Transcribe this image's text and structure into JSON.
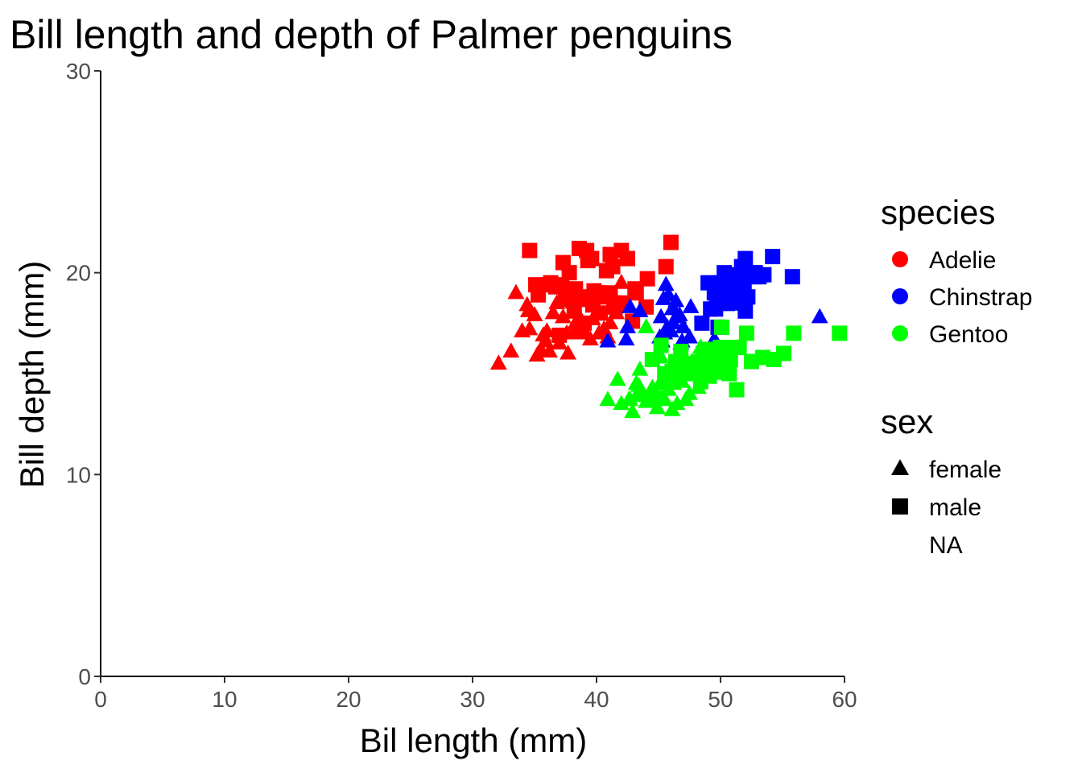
{
  "chart_data": {
    "type": "scatter",
    "title": "Bill length and depth of Palmer penguins",
    "xlabel": "Bil length (mm)",
    "ylabel": "Bill depth (mm)",
    "xlim": [
      0,
      60
    ],
    "ylim": [
      0,
      30
    ],
    "xticks": [
      0,
      10,
      20,
      30,
      40,
      50,
      60
    ],
    "yticks": [
      0,
      10,
      20,
      30
    ],
    "grid": false,
    "legend_position": "right",
    "species_legend": {
      "title": "species",
      "items": [
        {
          "label": "Adelie",
          "color": "#ff0000"
        },
        {
          "label": "Chinstrap",
          "color": "#0000ff"
        },
        {
          "label": "Gentoo",
          "color": "#00ff00"
        }
      ]
    },
    "sex_legend": {
      "title": "sex",
      "items": [
        {
          "label": "female",
          "shape": "triangle"
        },
        {
          "label": "male",
          "shape": "square"
        },
        {
          "label": "NA",
          "shape": "none"
        }
      ]
    },
    "series": [
      {
        "species": "Adelie",
        "sex": "male",
        "color": "#ff0000",
        "shape": "square",
        "points": [
          [
            34.6,
            21.1
          ],
          [
            37.8,
            20.0
          ],
          [
            38.6,
            21.2
          ],
          [
            39.2,
            21.1
          ],
          [
            41.1,
            20.9
          ],
          [
            42.0,
            21.1
          ],
          [
            46.0,
            21.5
          ],
          [
            45.6,
            20.3
          ],
          [
            40.8,
            20.1
          ],
          [
            36.3,
            19.5
          ],
          [
            37.2,
            19.4
          ],
          [
            38.2,
            18.1
          ],
          [
            39.8,
            19.1
          ],
          [
            40.3,
            18.0
          ],
          [
            41.3,
            20.3
          ],
          [
            42.5,
            20.7
          ],
          [
            41.1,
            19.0
          ],
          [
            43.2,
            19.0
          ],
          [
            44.1,
            19.7
          ],
          [
            40.6,
            18.8
          ],
          [
            39.0,
            17.5
          ],
          [
            37.7,
            18.7
          ],
          [
            38.8,
            17.2
          ],
          [
            35.3,
            18.9
          ],
          [
            36.0,
            19.4
          ],
          [
            37.3,
            20.5
          ],
          [
            38.1,
            18.6
          ],
          [
            39.7,
            18.4
          ],
          [
            40.2,
            19.0
          ],
          [
            40.5,
            18.9
          ],
          [
            41.5,
            18.3
          ],
          [
            42.2,
            18.5
          ],
          [
            44.0,
            18.3
          ],
          [
            39.6,
            20.7
          ],
          [
            36.7,
            19.3
          ],
          [
            38.3,
            19.2
          ],
          [
            37.6,
            19.1
          ],
          [
            41.4,
            18.5
          ],
          [
            39.3,
            20.6
          ],
          [
            43.1,
            19.2
          ],
          [
            37.5,
            18.9
          ],
          [
            40.9,
            18.9
          ],
          [
            38.9,
            18.8
          ],
          [
            35.1,
            19.4
          ],
          [
            42.9,
            17.6
          ],
          [
            37.0,
            16.9
          ]
        ]
      },
      {
        "species": "Adelie",
        "sex": "female",
        "color": "#ff0000",
        "shape": "triangle",
        "points": [
          [
            32.1,
            15.5
          ],
          [
            33.1,
            16.1
          ],
          [
            33.5,
            19.0
          ],
          [
            34.0,
            17.1
          ],
          [
            34.4,
            18.4
          ],
          [
            34.5,
            18.1
          ],
          [
            35.0,
            17.9
          ],
          [
            35.5,
            16.2
          ],
          [
            35.7,
            16.9
          ],
          [
            35.9,
            16.6
          ],
          [
            36.2,
            16.1
          ],
          [
            36.5,
            18.0
          ],
          [
            36.8,
            18.5
          ],
          [
            37.0,
            16.5
          ],
          [
            37.3,
            17.8
          ],
          [
            37.7,
            16.0
          ],
          [
            37.9,
            18.6
          ],
          [
            38.1,
            17.0
          ],
          [
            38.3,
            17.5
          ],
          [
            38.6,
            17.0
          ],
          [
            38.8,
            17.6
          ],
          [
            39.0,
            17.1
          ],
          [
            39.2,
            18.6
          ],
          [
            39.5,
            16.7
          ],
          [
            39.7,
            17.7
          ],
          [
            40.2,
            17.0
          ],
          [
            40.6,
            17.2
          ],
          [
            40.9,
            16.8
          ],
          [
            41.1,
            17.5
          ],
          [
            41.6,
            18.0
          ],
          [
            42.0,
            19.5
          ],
          [
            34.6,
            17.2
          ],
          [
            36.0,
            17.1
          ],
          [
            35.2,
            15.9
          ],
          [
            37.6,
            17.0
          ]
        ]
      },
      {
        "species": "Chinstrap",
        "sex": "male",
        "color": "#0000ff",
        "shape": "square",
        "points": [
          [
            50.0,
            19.5
          ],
          [
            50.5,
            19.6
          ],
          [
            51.3,
            19.2
          ],
          [
            52.0,
            18.1
          ],
          [
            52.7,
            19.8
          ],
          [
            53.5,
            19.9
          ],
          [
            54.2,
            20.8
          ],
          [
            55.8,
            19.8
          ],
          [
            50.9,
            19.1
          ],
          [
            49.0,
            19.5
          ],
          [
            51.5,
            18.7
          ],
          [
            49.6,
            18.2
          ],
          [
            50.8,
            18.5
          ],
          [
            52.0,
            20.7
          ],
          [
            51.4,
            19.0
          ],
          [
            50.7,
            19.7
          ],
          [
            49.5,
            19.0
          ],
          [
            52.8,
            20.0
          ],
          [
            51.9,
            19.5
          ],
          [
            49.8,
            17.3
          ],
          [
            49.7,
            18.6
          ],
          [
            48.5,
            17.5
          ],
          [
            50.6,
            19.4
          ],
          [
            51.7,
            20.3
          ],
          [
            51.0,
            18.8
          ],
          [
            49.2,
            18.2
          ],
          [
            50.2,
            18.7
          ],
          [
            52.2,
            18.8
          ],
          [
            51.3,
            19.9
          ],
          [
            52.5,
            20.0
          ],
          [
            50.3,
            20.0
          ],
          [
            53.1,
            19.8
          ]
        ]
      },
      {
        "species": "Chinstrap",
        "sex": "female",
        "color": "#0000ff",
        "shape": "triangle",
        "points": [
          [
            46.5,
            17.9
          ],
          [
            45.4,
            18.7
          ],
          [
            45.2,
            17.8
          ],
          [
            46.1,
            18.2
          ],
          [
            46.0,
            17.1
          ],
          [
            46.4,
            18.6
          ],
          [
            45.5,
            17.0
          ],
          [
            45.6,
            19.4
          ],
          [
            46.7,
            17.9
          ],
          [
            46.9,
            16.6
          ],
          [
            46.2,
            17.5
          ],
          [
            47.0,
            17.3
          ],
          [
            47.5,
            16.8
          ],
          [
            47.6,
            18.3
          ],
          [
            45.9,
            17.1
          ],
          [
            45.7,
            17.3
          ],
          [
            43.5,
            18.1
          ],
          [
            42.5,
            17.3
          ],
          [
            42.4,
            16.7
          ],
          [
            40.9,
            16.6
          ],
          [
            42.7,
            18.3
          ],
          [
            45.3,
            16.6
          ],
          [
            46.6,
            17.8
          ],
          [
            45.1,
            16.8
          ],
          [
            58.0,
            17.8
          ],
          [
            49.5,
            16.7
          ],
          [
            50.5,
            18.4
          ],
          [
            46.8,
            16.5
          ],
          [
            45.8,
            18.9
          ]
        ]
      },
      {
        "species": "Gentoo",
        "sex": "male",
        "color": "#00ff00",
        "shape": "square",
        "points": [
          [
            48.4,
            14.6
          ],
          [
            49.3,
            15.7
          ],
          [
            50.0,
            16.3
          ],
          [
            50.8,
            15.7
          ],
          [
            51.1,
            16.3
          ],
          [
            52.5,
            15.6
          ],
          [
            52.1,
            17.0
          ],
          [
            55.9,
            17.0
          ],
          [
            59.6,
            17.0
          ],
          [
            53.4,
            15.8
          ],
          [
            54.3,
            15.7
          ],
          [
            55.1,
            16.0
          ],
          [
            50.4,
            15.3
          ],
          [
            49.5,
            16.2
          ],
          [
            47.3,
            15.3
          ],
          [
            48.7,
            15.7
          ],
          [
            46.8,
            16.1
          ],
          [
            49.6,
            16.0
          ],
          [
            47.5,
            15.0
          ],
          [
            50.5,
            15.9
          ],
          [
            51.3,
            14.2
          ],
          [
            49.8,
            15.9
          ],
          [
            48.2,
            15.6
          ],
          [
            48.6,
            16.0
          ],
          [
            50.7,
            15.0
          ],
          [
            46.1,
            15.1
          ],
          [
            47.8,
            15.0
          ],
          [
            45.2,
            16.4
          ],
          [
            46.5,
            14.8
          ],
          [
            49.1,
            15.0
          ],
          [
            44.5,
            15.7
          ],
          [
            45.5,
            15.0
          ],
          [
            46.4,
            15.6
          ],
          [
            49.9,
            16.1
          ],
          [
            51.5,
            16.3
          ],
          [
            50.1,
            17.3
          ],
          [
            48.8,
            16.2
          ],
          [
            47.2,
            15.5
          ],
          [
            44.9,
            13.8
          ],
          [
            45.8,
            14.6
          ]
        ]
      },
      {
        "species": "Gentoo",
        "sex": "female",
        "color": "#00ff00",
        "shape": "triangle",
        "points": [
          [
            40.9,
            13.7
          ],
          [
            42.0,
            13.5
          ],
          [
            42.6,
            13.7
          ],
          [
            42.7,
            13.7
          ],
          [
            43.2,
            14.5
          ],
          [
            43.3,
            14.0
          ],
          [
            43.6,
            13.9
          ],
          [
            44.0,
            13.6
          ],
          [
            44.4,
            14.1
          ],
          [
            45.1,
            14.5
          ],
          [
            45.4,
            14.6
          ],
          [
            45.5,
            13.7
          ],
          [
            45.8,
            14.2
          ],
          [
            46.2,
            14.5
          ],
          [
            46.5,
            13.5
          ],
          [
            46.9,
            14.6
          ],
          [
            47.2,
            13.7
          ],
          [
            47.5,
            14.0
          ],
          [
            48.2,
            14.3
          ],
          [
            48.4,
            16.3
          ],
          [
            49.1,
            14.8
          ],
          [
            49.4,
            15.8
          ],
          [
            50.5,
            15.2
          ],
          [
            43.8,
            13.9
          ],
          [
            42.9,
            13.1
          ],
          [
            41.7,
            14.7
          ],
          [
            43.4,
            14.4
          ],
          [
            45.3,
            13.7
          ],
          [
            46.1,
            13.2
          ],
          [
            47.7,
            15.0
          ],
          [
            44.5,
            14.3
          ],
          [
            45.2,
            15.8
          ],
          [
            46.2,
            14.9
          ],
          [
            43.5,
            15.2
          ],
          [
            44.9,
            13.3
          ],
          [
            48.5,
            15.0
          ],
          [
            49.6,
            15.0
          ],
          [
            50.0,
            15.2
          ],
          [
            44.0,
            17.3
          ]
        ]
      }
    ]
  }
}
